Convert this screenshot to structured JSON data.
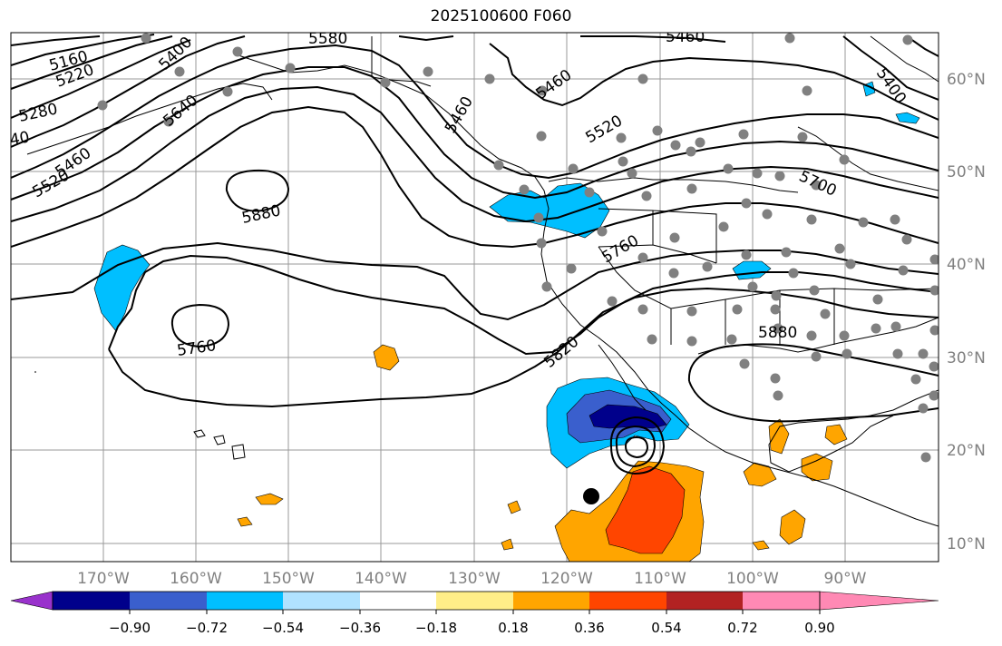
{
  "title": "2025100600 F060",
  "lon_labels": [
    "170°W",
    "160°W",
    "150°W",
    "140°W",
    "130°W",
    "120°W",
    "110°W",
    "100°W",
    "90°W"
  ],
  "lat_labels": [
    "60°N",
    "50°N",
    "40°N",
    "30°N",
    "20°N",
    "10°N"
  ],
  "contour_labels": [
    "5160",
    "5220",
    "5280",
    "40",
    "5460",
    "5520",
    "5400",
    "5580",
    "5640",
    "5880",
    "5760",
    "5460",
    "5460",
    "5520",
    "5700",
    "5400",
    "5760",
    "5820",
    "5880",
    "5460"
  ],
  "colorbar": {
    "colors": [
      "#9932cc",
      "#00008b",
      "#3a5fcd",
      "#00bfff",
      "#b0e2ff",
      "#ffffff",
      "#ffee88",
      "#ffa500",
      "#ff4500",
      "#b22222",
      "#ff89b4"
    ],
    "tick_labels": [
      "−0.90",
      "−0.72",
      "−0.54",
      "−0.36",
      "−0.18",
      "0.18",
      "0.36",
      "0.54",
      "0.72",
      "0.90"
    ]
  },
  "map_colors": {
    "coast": "#000000",
    "grid": "#999999",
    "station": "#808080"
  }
}
